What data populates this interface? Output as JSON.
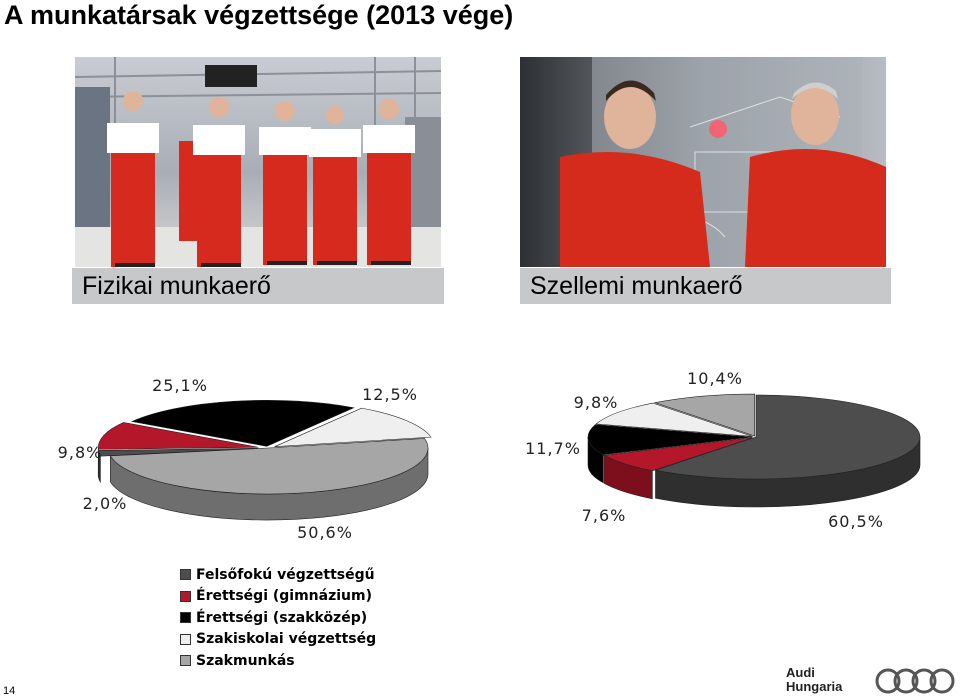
{
  "title": "A munkatársak végzettsége (2013 vége)",
  "captions": {
    "physical": "Fizikai munkaerő",
    "intellectual": "Szellemi munkaerő"
  },
  "legend": [
    {
      "label": "Felsőfokú végzettségű",
      "color": "#4d4d4d"
    },
    {
      "label": "Érettségi (gimnázium)",
      "color": "#b5172a"
    },
    {
      "label": "Érettségi (szakközép)",
      "color": "#000000"
    },
    {
      "label": "Szakiskolai végzettség",
      "color": "#efefef"
    },
    {
      "label": "Szakmunkás",
      "color": "#a6a6a6"
    }
  ],
  "chart_data": [
    {
      "type": "pie",
      "categories": [
        "Felsőfokú végzettségű",
        "Érettségi (gimnázium)",
        "Érettségi (szakközép)",
        "Szakiskolai végzettség",
        "Szakmunkás"
      ],
      "values": [
        2.0,
        9.8,
        25.1,
        12.5,
        50.6
      ],
      "labels": [
        "2,0%",
        "9,8%",
        "25,1%",
        "12,5%",
        "50,6%"
      ]
    },
    {
      "type": "pie",
      "categories": [
        "Felsőfokú végzettségű",
        "Érettségi (gimnázium)",
        "Érettségi (szakközép)",
        "Szakiskolai végzettség",
        "Szakmunkás"
      ],
      "values": [
        60.5,
        7.6,
        11.7,
        9.8,
        10.4
      ],
      "labels": [
        "60,5%",
        "7,6%",
        "11,7%",
        "9,8%",
        "10,4%"
      ]
    }
  ],
  "page_number": "14",
  "logo": {
    "line1": "Audi",
    "line2": "Hungaria"
  }
}
